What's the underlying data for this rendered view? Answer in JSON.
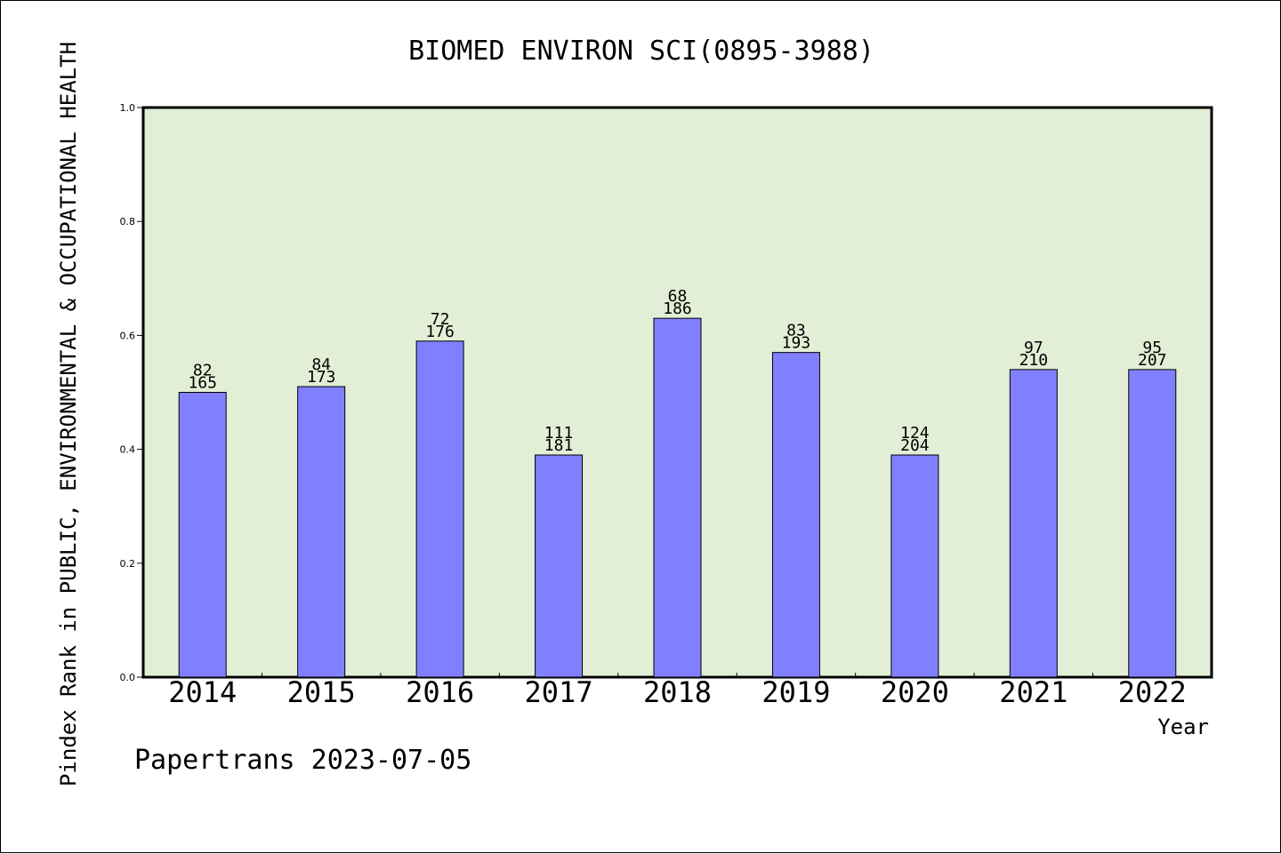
{
  "chart_data": {
    "type": "bar",
    "title": "BIOMED ENVIRON SCI(0895-3988)",
    "ylabel": "Pindex Rank in PUBLIC, ENVIRONMENTAL & OCCUPATIONAL HEALTH",
    "xlabel": "Year",
    "ylim": [
      0.0,
      1.0
    ],
    "yticks": [
      "0.0",
      "0.2",
      "0.4",
      "0.6",
      "0.8",
      "1.0"
    ],
    "grid": false,
    "categories": [
      "2014",
      "2015",
      "2016",
      "2017",
      "2018",
      "2019",
      "2020",
      "2021",
      "2022"
    ],
    "values": [
      0.5,
      0.51,
      0.59,
      0.39,
      0.63,
      0.57,
      0.39,
      0.54,
      0.54
    ],
    "rank_labels": [
      "82",
      "84",
      "72",
      "111",
      "68",
      "83",
      "124",
      "97",
      "95"
    ],
    "total_labels": [
      "165",
      "173",
      "176",
      "181",
      "186",
      "193",
      "204",
      "210",
      "207"
    ],
    "colors": {
      "plot_background": "#e2efd6",
      "bar_fill": "#8080ff",
      "bar_stroke": "#000000"
    }
  },
  "footer": "Papertrans 2023-07-05"
}
